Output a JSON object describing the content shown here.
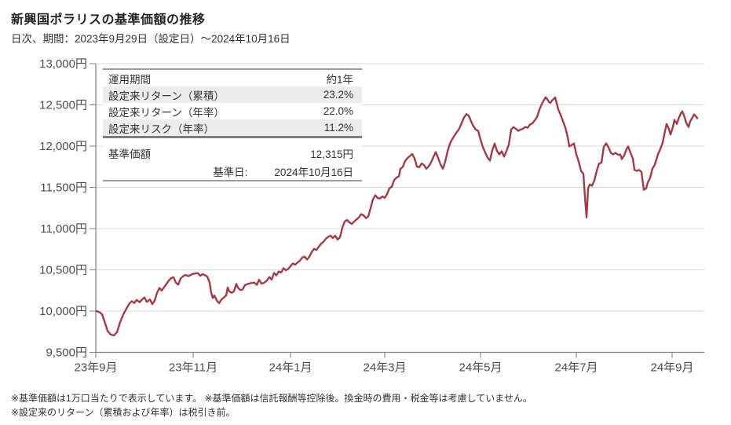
{
  "header": {
    "title": "新興国ポラリスの基準価額の推移",
    "subtitle": "日次、期間：2023年9月29日（設定日）～2024年10月16日"
  },
  "stats_table": {
    "rows": [
      {
        "label": "運用期間",
        "value": "約1年"
      },
      {
        "label": "設定来リターン（累積）",
        "value": "23.2%"
      },
      {
        "label": "設定来リターン（年率）",
        "value": "22.0%"
      },
      {
        "label": "設定来リスク（年率）",
        "value": "11.2%"
      }
    ]
  },
  "nav_table": {
    "label": "基準価額",
    "value": "12,315円",
    "date_label": "基準日:",
    "date_value": "2024年10月16日"
  },
  "footnotes": [
    "※基準価額は1万口当たりで表示しています。 ※基準価額は信託報酬等控除後。換金時の費用・税金等は考慮していません。",
    "※設定来のリターン（累積および年率）は税引き前。"
  ],
  "chart_data": {
    "type": "line",
    "title": "新興国ポラリスの基準価額の推移",
    "x_unit": "days since 2023-09-29 (設定日)",
    "y_unit": "円 (per 10,000口)",
    "ylim": [
      9500,
      13000
    ],
    "grid": "horizontal only",
    "legend": "none",
    "y_tick_labels": [
      "13,000円",
      "12,500円",
      "12,000円",
      "11,500円",
      "11,000円",
      "10,500円",
      "10,000円",
      "9,500円"
    ],
    "y_tick_values": [
      13000,
      12500,
      12000,
      11500,
      11000,
      10500,
      10000,
      9500
    ],
    "x_tick_labels": [
      "23年9月",
      "23年11月",
      "24年1月",
      "24年3月",
      "24年5月",
      "24年7月",
      "24年9月"
    ],
    "x_tick_days": [
      0,
      62,
      124,
      184,
      245,
      306,
      367
    ],
    "x_range_days": [
      0,
      387.5
    ],
    "series": [
      {
        "name": "基準価額",
        "color": "#a03c46",
        "start_value": 10000,
        "end_value": 12315,
        "points": [
          [
            0.5,
            10000
          ],
          [
            2.5,
            9985
          ],
          [
            4,
            9960
          ],
          [
            5.5,
            9880
          ],
          [
            7.5,
            9760
          ],
          [
            9.5,
            9715
          ],
          [
            11.5,
            9705
          ],
          [
            13.5,
            9745
          ],
          [
            15.5,
            9865
          ],
          [
            17.5,
            9960
          ],
          [
            19.5,
            10030
          ],
          [
            21.5,
            10095
          ],
          [
            23,
            10120
          ],
          [
            24.5,
            10098
          ],
          [
            26,
            10135
          ],
          [
            28,
            10108
          ],
          [
            29.5,
            10142
          ],
          [
            31,
            10165
          ],
          [
            32.5,
            10112
          ],
          [
            34.5,
            10140
          ],
          [
            36,
            10085
          ],
          [
            37.5,
            10130
          ],
          [
            39,
            10220
          ],
          [
            40.5,
            10280
          ],
          [
            42,
            10250
          ],
          [
            43.5,
            10290
          ],
          [
            45,
            10330
          ],
          [
            46.5,
            10370
          ],
          [
            48,
            10400
          ],
          [
            49.5,
            10410
          ],
          [
            51,
            10345
          ],
          [
            52.5,
            10320
          ],
          [
            54,
            10395
          ],
          [
            55.5,
            10420
          ],
          [
            57,
            10438
          ],
          [
            59,
            10425
          ],
          [
            61,
            10445
          ],
          [
            63,
            10455
          ],
          [
            65,
            10460
          ],
          [
            66.5,
            10428
          ],
          [
            68,
            10448
          ],
          [
            69.5,
            10435
          ],
          [
            71,
            10418
          ],
          [
            72.5,
            10345
          ],
          [
            73.5,
            10220
          ],
          [
            74.5,
            10158
          ],
          [
            75.5,
            10190
          ],
          [
            77,
            10130
          ],
          [
            78.5,
            10095
          ],
          [
            80,
            10140
          ],
          [
            81.5,
            10165
          ],
          [
            83,
            10190
          ],
          [
            84,
            10285
          ],
          [
            85,
            10240
          ],
          [
            86.5,
            10222
          ],
          [
            88,
            10240
          ],
          [
            89.5,
            10330
          ],
          [
            90.5,
            10286
          ],
          [
            92,
            10255
          ],
          [
            93.5,
            10262
          ],
          [
            95,
            10315
          ],
          [
            97,
            10330
          ],
          [
            99,
            10340
          ],
          [
            101,
            10345
          ],
          [
            102.5,
            10318
          ],
          [
            104,
            10380
          ],
          [
            105.5,
            10333
          ],
          [
            107,
            10342
          ],
          [
            109,
            10370
          ],
          [
            110.5,
            10412
          ],
          [
            112,
            10382
          ],
          [
            113.5,
            10462
          ],
          [
            115,
            10432
          ],
          [
            116.5,
            10480
          ],
          [
            118,
            10468
          ],
          [
            119.5,
            10520
          ],
          [
            121,
            10495
          ],
          [
            122.5,
            10510
          ],
          [
            124,
            10545
          ],
          [
            125.5,
            10578
          ],
          [
            127,
            10562
          ],
          [
            128.5,
            10590
          ],
          [
            130,
            10612
          ],
          [
            131.5,
            10650
          ],
          [
            133,
            10660
          ],
          [
            134.5,
            10625
          ],
          [
            136,
            10660
          ],
          [
            137.5,
            10715
          ],
          [
            139,
            10755
          ],
          [
            140.5,
            10740
          ],
          [
            142,
            10780
          ],
          [
            143.5,
            10818
          ],
          [
            145,
            10840
          ],
          [
            146.5,
            10878
          ],
          [
            148,
            10900
          ],
          [
            149.5,
            10915
          ],
          [
            151,
            10886
          ],
          [
            152.5,
            10914
          ],
          [
            154,
            10867
          ],
          [
            155.5,
            10895
          ],
          [
            157,
            11010
          ],
          [
            158.5,
            11086
          ],
          [
            160,
            11105
          ],
          [
            161.5,
            11076
          ],
          [
            163,
            11057
          ],
          [
            164.5,
            11086
          ],
          [
            166,
            11110
          ],
          [
            167.5,
            11135
          ],
          [
            169,
            11175
          ],
          [
            170.5,
            11160
          ],
          [
            172,
            11128
          ],
          [
            173.5,
            11148
          ],
          [
            175,
            11250
          ],
          [
            176.5,
            11355
          ],
          [
            178,
            11405
          ],
          [
            179.5,
            11370
          ],
          [
            181,
            11365
          ],
          [
            182.5,
            11390
          ],
          [
            184,
            11372
          ],
          [
            185.5,
            11420
          ],
          [
            187,
            11490
          ],
          [
            188.5,
            11508
          ],
          [
            190,
            11590
          ],
          [
            191.5,
            11618
          ],
          [
            193,
            11632
          ],
          [
            194,
            11725
          ],
          [
            195.5,
            11748
          ],
          [
            197,
            11820
          ],
          [
            198.5,
            11855
          ],
          [
            200,
            11878
          ],
          [
            201.5,
            11905
          ],
          [
            203,
            11850
          ],
          [
            204.5,
            11752
          ],
          [
            206,
            11745
          ],
          [
            207.5,
            11790
          ],
          [
            209,
            11770
          ],
          [
            210.5,
            11726
          ],
          [
            212,
            11755
          ],
          [
            213.5,
            11802
          ],
          [
            215,
            11868
          ],
          [
            216.5,
            11928
          ],
          [
            218,
            11855
          ],
          [
            219.5,
            11780
          ],
          [
            221,
            11726
          ],
          [
            222.5,
            11812
          ],
          [
            224,
            11935
          ],
          [
            225.5,
            12030
          ],
          [
            227,
            12085
          ],
          [
            228.5,
            12130
          ],
          [
            230,
            12172
          ],
          [
            231.5,
            12212
          ],
          [
            233,
            12282
          ],
          [
            234.5,
            12348
          ],
          [
            236,
            12388
          ],
          [
            237.5,
            12368
          ],
          [
            239,
            12300
          ],
          [
            240.5,
            12240
          ],
          [
            242,
            12200
          ],
          [
            243.5,
            12185
          ],
          [
            245,
            12078
          ],
          [
            246.5,
            11988
          ],
          [
            248,
            11920
          ],
          [
            249.5,
            11860
          ],
          [
            251,
            11826
          ],
          [
            252.5,
            11950
          ],
          [
            254,
            12030
          ],
          [
            255.5,
            11940
          ],
          [
            257,
            11900
          ],
          [
            258.5,
            11938
          ],
          [
            260,
            11872
          ],
          [
            261.5,
            11940
          ],
          [
            263,
            12018
          ],
          [
            264.5,
            12200
          ],
          [
            266,
            12230
          ],
          [
            267.5,
            12210
          ],
          [
            269,
            12186
          ],
          [
            270.5,
            12200
          ],
          [
            272,
            12210
          ],
          [
            273.5,
            12232
          ],
          [
            275,
            12222
          ],
          [
            276.5,
            12262
          ],
          [
            278,
            12275
          ],
          [
            279.5,
            12312
          ],
          [
            281,
            12352
          ],
          [
            282.5,
            12442
          ],
          [
            284,
            12510
          ],
          [
            285.5,
            12562
          ],
          [
            286.5,
            12592
          ],
          [
            287.5,
            12570
          ],
          [
            288.5,
            12536
          ],
          [
            289.5,
            12524
          ],
          [
            290.5,
            12552
          ],
          [
            291.5,
            12570
          ],
          [
            292.5,
            12590
          ],
          [
            293.5,
            12520
          ],
          [
            294.5,
            12446
          ],
          [
            296,
            12380
          ],
          [
            297.5,
            12300
          ],
          [
            299,
            12226
          ],
          [
            300.5,
            12110
          ],
          [
            301.5,
            11996
          ],
          [
            303,
            12012
          ],
          [
            304.5,
            12032
          ],
          [
            306,
            11900
          ],
          [
            307.5,
            11812
          ],
          [
            309,
            11700
          ],
          [
            310.5,
            11665
          ],
          [
            311.5,
            11380
          ],
          [
            312.5,
            11135
          ],
          [
            313.5,
            11482
          ],
          [
            314.5,
            11535
          ],
          [
            316,
            11520
          ],
          [
            317.5,
            11585
          ],
          [
            319,
            11700
          ],
          [
            320.5,
            11790
          ],
          [
            322,
            11798
          ],
          [
            323.5,
            11992
          ],
          [
            325,
            12032
          ],
          [
            326.5,
            11985
          ],
          [
            328,
            11918
          ],
          [
            329.5,
            11900
          ],
          [
            331,
            11918
          ],
          [
            332.5,
            11895
          ],
          [
            334,
            11898
          ],
          [
            335,
            11843
          ],
          [
            336.5,
            11888
          ],
          [
            338,
            11965
          ],
          [
            339,
            11996
          ],
          [
            340.5,
            11918
          ],
          [
            342,
            11850
          ],
          [
            343,
            11712
          ],
          [
            344.5,
            11700
          ],
          [
            346,
            11710
          ],
          [
            347.5,
            11686
          ],
          [
            349,
            11470
          ],
          [
            350.5,
            11490
          ],
          [
            351.5,
            11558
          ],
          [
            353,
            11615
          ],
          [
            354.5,
            11728
          ],
          [
            356,
            11775
          ],
          [
            358,
            11900
          ],
          [
            359.5,
            11965
          ],
          [
            361,
            12042
          ],
          [
            362.5,
            12185
          ],
          [
            363.5,
            12270
          ],
          [
            365,
            12205
          ],
          [
            366,
            12140
          ],
          [
            367.5,
            12232
          ],
          [
            368.5,
            12318
          ],
          [
            370,
            12270
          ],
          [
            371,
            12328
          ],
          [
            372.5,
            12395
          ],
          [
            373.5,
            12422
          ],
          [
            375,
            12348
          ],
          [
            376,
            12282
          ],
          [
            377.5,
            12232
          ],
          [
            378.5,
            12300
          ],
          [
            380,
            12348
          ],
          [
            381,
            12385
          ],
          [
            382,
            12365
          ],
          [
            383,
            12338
          ]
        ]
      }
    ]
  }
}
